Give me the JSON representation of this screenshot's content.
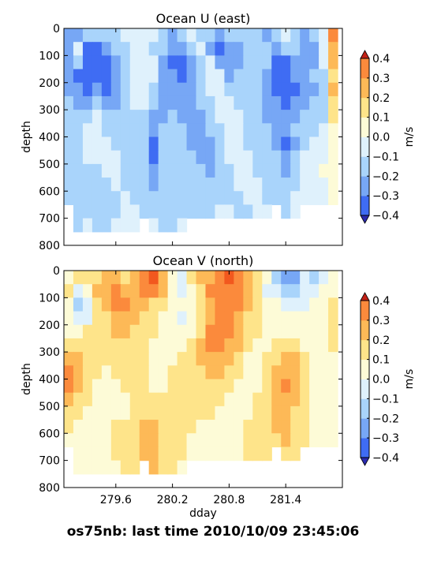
{
  "figure": {
    "caption": "os75nb: last time 2010/10/09 23:45:06",
    "colors": {
      "levels": [
        -0.4,
        -0.3,
        -0.2,
        -0.1,
        0.0,
        0.1,
        0.2,
        0.3,
        0.4
      ],
      "bins": [
        "#3a32e6",
        "#3f6cf3",
        "#77a7f5",
        "#a9d4fb",
        "#dff1fc",
        "#fdfbd7",
        "#fee48a",
        "#fdb957",
        "#fb8a3c",
        "#f2581e"
      ],
      "under": "#2b2bb0",
      "over": "#c22116",
      "axis": "#000000",
      "background": "#ffffff"
    }
  },
  "chart_data": [
    {
      "type": "heatmap",
      "title": "Ocean U (east)",
      "xlabel": "",
      "ylabel": "depth",
      "xlim": [
        279.05,
        282.0
      ],
      "ylim": [
        800,
        0
      ],
      "xticks": [
        279.6,
        280.2,
        280.8,
        281.4
      ],
      "xtick_labels": [
        "",
        "",
        "",
        ""
      ],
      "yticks": [
        0,
        100,
        200,
        300,
        400,
        500,
        600,
        700,
        800
      ],
      "ytick_labels": [
        "0",
        "100",
        "200",
        "300",
        "400",
        "500",
        "600",
        "700",
        "800"
      ],
      "colorbar": {
        "label": "m/s",
        "ticks": [
          0.4,
          0.3,
          0.2,
          0.1,
          0.0,
          -0.1,
          -0.2,
          -0.3,
          -0.4
        ],
        "tick_labels": [
          "0.4",
          "0.3",
          "0.2",
          "0.1",
          "0.0",
          "−0.1",
          "−0.2",
          "−0.3",
          "−0.4"
        ]
      },
      "x": [
        279.1,
        279.2,
        279.3,
        279.4,
        279.5,
        279.6,
        279.7,
        279.8,
        279.9,
        280.0,
        280.1,
        280.2,
        280.3,
        280.4,
        280.5,
        280.6,
        280.7,
        280.8,
        280.9,
        281.0,
        281.1,
        281.2,
        281.3,
        281.4,
        281.5,
        281.6,
        281.7,
        281.8,
        281.9
      ],
      "y": [
        25,
        75,
        125,
        175,
        225,
        275,
        325,
        375,
        425,
        475,
        525,
        575,
        625,
        675,
        725
      ],
      "z": [
        [
          -0.3,
          -0.25,
          -0.15,
          -0.2,
          -0.2,
          -0.15,
          -0.1,
          -0.1,
          -0.05,
          -0.1,
          -0.15,
          -0.25,
          -0.2,
          -0.1,
          -0.15,
          -0.2,
          -0.25,
          -0.15,
          -0.2,
          -0.2,
          -0.15,
          -0.25,
          -0.15,
          -0.1,
          -0.2,
          -0.25,
          -0.2,
          -0.05,
          0.3
        ],
        [
          -0.3,
          -0.05,
          -0.35,
          -0.35,
          -0.25,
          -0.2,
          -0.15,
          -0.1,
          -0.05,
          -0.15,
          -0.2,
          -0.3,
          -0.25,
          -0.2,
          -0.1,
          -0.25,
          -0.35,
          -0.3,
          -0.25,
          -0.2,
          -0.15,
          -0.2,
          -0.25,
          -0.15,
          -0.2,
          -0.25,
          -0.25,
          -0.05,
          0.25
        ],
        [
          -0.3,
          -0.2,
          -0.4,
          -0.4,
          -0.35,
          -0.25,
          -0.15,
          -0.1,
          -0.05,
          -0.1,
          -0.25,
          -0.35,
          -0.35,
          -0.25,
          -0.15,
          -0.1,
          -0.25,
          -0.3,
          -0.25,
          -0.2,
          -0.15,
          -0.2,
          -0.35,
          -0.35,
          -0.3,
          -0.25,
          -0.25,
          -0.1,
          0.2
        ],
        [
          -0.25,
          -0.35,
          -0.4,
          -0.4,
          -0.35,
          -0.25,
          -0.15,
          -0.1,
          -0.05,
          -0.1,
          -0.25,
          -0.3,
          -0.35,
          -0.25,
          -0.2,
          -0.05,
          -0.1,
          -0.25,
          -0.2,
          -0.2,
          -0.15,
          -0.25,
          -0.4,
          -0.4,
          -0.3,
          -0.25,
          -0.2,
          -0.15,
          0.15
        ],
        [
          -0.25,
          -0.3,
          -0.35,
          -0.3,
          -0.35,
          -0.3,
          -0.15,
          -0.05,
          -0.1,
          -0.15,
          -0.25,
          -0.3,
          -0.3,
          -0.25,
          -0.2,
          -0.1,
          -0.05,
          -0.15,
          -0.2,
          -0.2,
          -0.2,
          -0.25,
          -0.35,
          -0.4,
          -0.35,
          -0.25,
          -0.25,
          -0.2,
          0.2
        ],
        [
          -0.2,
          -0.25,
          -0.25,
          -0.2,
          -0.25,
          -0.3,
          -0.2,
          -0.1,
          -0.1,
          -0.2,
          -0.25,
          -0.25,
          -0.3,
          -0.3,
          -0.2,
          -0.15,
          -0.1,
          -0.1,
          -0.15,
          -0.15,
          -0.2,
          -0.25,
          -0.3,
          -0.35,
          -0.3,
          -0.25,
          -0.2,
          -0.2,
          0.15
        ],
        [
          -0.15,
          -0.2,
          -0.15,
          -0.1,
          -0.15,
          -0.2,
          -0.2,
          -0.15,
          -0.15,
          -0.25,
          -0.25,
          -0.2,
          -0.25,
          -0.3,
          -0.25,
          -0.2,
          -0.1,
          -0.05,
          -0.1,
          -0.15,
          -0.2,
          -0.25,
          -0.25,
          -0.3,
          -0.25,
          -0.2,
          -0.2,
          -0.15,
          0.1
        ],
        [
          -0.15,
          -0.15,
          -0.1,
          -0.1,
          -0.15,
          -0.15,
          -0.2,
          -0.15,
          -0.2,
          -0.3,
          -0.2,
          -0.2,
          -0.2,
          -0.3,
          -0.25,
          -0.2,
          -0.15,
          -0.05,
          -0.1,
          -0.15,
          -0.2,
          -0.2,
          -0.25,
          -0.3,
          -0.2,
          -0.15,
          -0.15,
          -0.1,
          0.05
        ],
        [
          -0.15,
          -0.15,
          -0.1,
          -0.1,
          -0.1,
          -0.15,
          -0.15,
          -0.2,
          -0.2,
          -0.35,
          -0.2,
          -0.15,
          -0.2,
          -0.25,
          -0.25,
          -0.25,
          -0.15,
          -0.1,
          -0.05,
          -0.15,
          -0.15,
          -0.15,
          -0.25,
          -0.35,
          -0.25,
          -0.15,
          -0.1,
          -0.1,
          0.0
        ],
        [
          -0.2,
          -0.15,
          -0.1,
          -0.1,
          -0.1,
          -0.1,
          -0.15,
          -0.2,
          -0.2,
          -0.35,
          -0.2,
          -0.15,
          -0.15,
          -0.2,
          -0.25,
          -0.25,
          -0.2,
          -0.1,
          -0.05,
          -0.1,
          -0.15,
          -0.15,
          -0.2,
          -0.3,
          -0.2,
          -0.1,
          -0.05,
          -0.05,
          0.0
        ],
        [
          -0.2,
          -0.15,
          -0.15,
          -0.15,
          -0.1,
          -0.1,
          -0.15,
          -0.15,
          -0.2,
          -0.3,
          -0.2,
          -0.15,
          -0.15,
          -0.15,
          -0.2,
          -0.25,
          -0.2,
          -0.15,
          -0.1,
          -0.1,
          -0.15,
          -0.15,
          -0.2,
          -0.25,
          -0.15,
          -0.1,
          -0.05,
          0.0,
          0.0
        ],
        [
          -0.15,
          -0.2,
          -0.15,
          -0.15,
          -0.15,
          -0.1,
          -0.15,
          -0.15,
          -0.15,
          -0.25,
          -0.15,
          -0.15,
          -0.15,
          -0.15,
          -0.15,
          -0.2,
          -0.2,
          -0.15,
          -0.1,
          -0.1,
          -0.1,
          -0.15,
          -0.15,
          -0.2,
          -0.15,
          -0.1,
          -0.05,
          -0.05,
          0.0
        ],
        [
          -0.15,
          -0.15,
          -0.15,
          -0.2,
          -0.15,
          -0.15,
          -0.1,
          -0.15,
          -0.15,
          -0.2,
          -0.15,
          -0.15,
          -0.15,
          -0.15,
          -0.15,
          -0.15,
          -0.15,
          -0.15,
          -0.15,
          -0.1,
          -0.1,
          -0.15,
          -0.15,
          -0.15,
          -0.1,
          -0.1,
          -0.05,
          -0.05,
          0.0
        ],
        [
          null,
          -0.15,
          -0.15,
          -0.2,
          -0.15,
          -0.15,
          -0.1,
          -0.1,
          -0.15,
          -0.2,
          -0.15,
          -0.15,
          -0.15,
          -0.15,
          -0.15,
          -0.15,
          -0.1,
          -0.1,
          -0.15,
          -0.15,
          -0.1,
          -0.1,
          null,
          -0.15,
          -0.1,
          null,
          null,
          null,
          null
        ],
        [
          null,
          -0.15,
          -0.1,
          -0.15,
          -0.15,
          -0.1,
          -0.1,
          -0.1,
          null,
          -0.1,
          -0.15,
          -0.15,
          -0.1,
          null,
          null,
          null,
          null,
          null,
          null,
          null,
          null,
          null,
          null,
          null,
          null,
          null,
          null,
          null,
          null
        ]
      ]
    },
    {
      "type": "heatmap",
      "title": "Ocean V (north)",
      "xlabel": "dday",
      "ylabel": "depth",
      "xlim": [
        279.05,
        282.0
      ],
      "ylim": [
        800,
        0
      ],
      "xticks": [
        279.6,
        280.2,
        280.8,
        281.4
      ],
      "xtick_labels": [
        "279.6",
        "280.2",
        "280.8",
        "281.4"
      ],
      "yticks": [
        0,
        100,
        200,
        300,
        400,
        500,
        600,
        700,
        800
      ],
      "ytick_labels": [
        "0",
        "100",
        "200",
        "300",
        "400",
        "500",
        "600",
        "700",
        "800"
      ],
      "colorbar": {
        "label": "m/s",
        "ticks": [
          0.4,
          0.3,
          0.2,
          0.1,
          0.0,
          -0.1,
          -0.2,
          -0.3,
          -0.4
        ],
        "tick_labels": [
          "0.4",
          "0.3",
          "0.2",
          "0.1",
          "0.0",
          "−0.1",
          "−0.2",
          "−0.3",
          "−0.4"
        ]
      },
      "x": [
        279.1,
        279.2,
        279.3,
        279.4,
        279.5,
        279.6,
        279.7,
        279.8,
        279.9,
        280.0,
        280.1,
        280.2,
        280.3,
        280.4,
        280.5,
        280.6,
        280.7,
        280.8,
        280.9,
        281.0,
        281.1,
        281.2,
        281.3,
        281.4,
        281.5,
        281.6,
        281.7,
        281.8,
        281.9
      ],
      "y": [
        25,
        75,
        125,
        175,
        225,
        275,
        325,
        375,
        425,
        475,
        525,
        575,
        625,
        675,
        725
      ],
      "z": [
        [
          0.05,
          0.1,
          0.1,
          0.15,
          0.2,
          0.2,
          0.15,
          0.25,
          0.3,
          0.45,
          0.25,
          0.05,
          -0.1,
          0.1,
          0.2,
          0.25,
          0.3,
          0.45,
          0.3,
          0.2,
          0.1,
          0.0,
          -0.15,
          -0.3,
          -0.25,
          -0.1,
          -0.15,
          -0.1,
          0.0
        ],
        [
          0.15,
          -0.05,
          0.05,
          0.2,
          0.25,
          0.3,
          0.25,
          0.25,
          0.3,
          0.35,
          0.2,
          0.0,
          -0.1,
          0.05,
          0.15,
          0.3,
          0.35,
          0.35,
          0.35,
          0.2,
          0.1,
          -0.05,
          -0.05,
          -0.2,
          -0.2,
          -0.1,
          -0.1,
          0.0,
          0.05
        ],
        [
          0.05,
          -0.2,
          -0.05,
          0.15,
          0.25,
          0.3,
          0.3,
          0.25,
          0.2,
          0.15,
          0.1,
          0.05,
          0.0,
          0.05,
          0.1,
          0.25,
          0.3,
          0.3,
          0.3,
          0.2,
          0.1,
          0.05,
          0.0,
          -0.05,
          -0.1,
          -0.05,
          0.0,
          0.05,
          0.1
        ],
        [
          0.0,
          -0.1,
          -0.05,
          0.1,
          0.15,
          0.25,
          0.25,
          0.2,
          0.15,
          0.1,
          0.05,
          0.0,
          -0.05,
          0.0,
          0.1,
          0.25,
          0.35,
          0.3,
          0.25,
          0.15,
          0.1,
          0.05,
          0.0,
          0.0,
          0.0,
          0.0,
          0.0,
          0.05,
          0.1
        ],
        [
          0.05,
          0.05,
          0.1,
          0.1,
          0.15,
          0.2,
          0.2,
          0.15,
          0.15,
          0.1,
          0.05,
          0.0,
          0.0,
          0.05,
          0.15,
          0.3,
          0.35,
          0.3,
          0.2,
          0.15,
          0.1,
          0.05,
          0.05,
          0.0,
          0.05,
          0.05,
          0.05,
          0.05,
          0.15
        ],
        [
          0.15,
          0.15,
          0.15,
          0.1,
          0.1,
          0.15,
          0.15,
          0.15,
          0.1,
          0.05,
          0.05,
          0.05,
          0.05,
          0.1,
          0.2,
          0.3,
          0.3,
          0.25,
          0.2,
          0.1,
          0.05,
          0.05,
          0.1,
          0.15,
          0.1,
          0.05,
          0.05,
          0.05,
          0.1
        ],
        [
          0.25,
          0.2,
          0.15,
          0.1,
          0.1,
          0.1,
          0.15,
          0.15,
          0.1,
          0.05,
          0.05,
          0.05,
          0.1,
          0.15,
          0.2,
          0.25,
          0.25,
          0.2,
          0.15,
          0.05,
          0.05,
          0.1,
          0.15,
          0.25,
          0.2,
          0.1,
          0.05,
          0.05,
          0.05
        ],
        [
          0.3,
          0.2,
          0.15,
          0.1,
          0.05,
          0.1,
          0.1,
          0.15,
          0.1,
          0.05,
          0.05,
          0.1,
          0.15,
          0.15,
          0.15,
          0.2,
          0.2,
          0.15,
          0.1,
          0.05,
          0.05,
          0.1,
          0.2,
          0.25,
          0.25,
          0.1,
          0.05,
          0.0,
          0.05
        ],
        [
          0.3,
          0.2,
          0.1,
          0.05,
          0.05,
          0.05,
          0.1,
          0.1,
          0.1,
          0.05,
          0.05,
          0.1,
          0.15,
          0.15,
          0.15,
          0.15,
          0.15,
          0.1,
          0.05,
          0.05,
          0.05,
          0.15,
          0.2,
          0.3,
          0.25,
          0.15,
          0.05,
          0.0,
          0.0
        ],
        [
          0.25,
          0.15,
          0.1,
          0.05,
          0.05,
          0.05,
          0.05,
          0.1,
          0.1,
          0.1,
          0.1,
          0.15,
          0.15,
          0.15,
          0.1,
          0.1,
          0.1,
          0.05,
          0.05,
          0.05,
          0.1,
          0.15,
          0.2,
          0.25,
          0.2,
          0.15,
          0.05,
          0.05,
          0.0
        ],
        [
          0.15,
          0.1,
          0.05,
          0.05,
          0.05,
          0.05,
          0.05,
          0.1,
          0.15,
          0.15,
          0.15,
          0.15,
          0.1,
          0.1,
          0.1,
          0.1,
          0.05,
          0.05,
          0.05,
          0.05,
          0.1,
          0.15,
          0.2,
          0.25,
          0.15,
          0.1,
          0.05,
          0.05,
          0.0
        ],
        [
          0.1,
          0.05,
          0.05,
          0.05,
          0.05,
          0.1,
          0.1,
          0.15,
          0.2,
          0.2,
          0.15,
          0.1,
          0.1,
          0.1,
          0.05,
          0.05,
          0.05,
          0.05,
          0.05,
          0.1,
          0.15,
          0.15,
          0.2,
          0.2,
          0.15,
          0.1,
          0.05,
          0.05,
          0.0
        ],
        [
          0.05,
          0.05,
          0.05,
          0.05,
          0.05,
          0.1,
          0.1,
          0.15,
          0.2,
          0.2,
          0.15,
          0.1,
          0.1,
          0.05,
          0.05,
          0.05,
          0.05,
          0.05,
          0.05,
          0.1,
          0.1,
          0.15,
          0.15,
          0.2,
          0.15,
          0.1,
          0.05,
          0.05,
          0.05
        ],
        [
          null,
          0.05,
          0.05,
          0.05,
          0.05,
          0.1,
          0.1,
          0.15,
          0.2,
          0.2,
          0.15,
          0.1,
          0.1,
          0.05,
          0.05,
          0.05,
          0.05,
          0.05,
          0.05,
          0.1,
          0.1,
          0.15,
          null,
          0.15,
          0.1,
          null,
          null,
          null,
          null
        ],
        [
          null,
          0.05,
          0.05,
          0.05,
          0.05,
          0.05,
          0.1,
          0.15,
          null,
          0.2,
          0.15,
          0.1,
          0.05,
          null,
          null,
          null,
          null,
          null,
          null,
          null,
          null,
          null,
          null,
          null,
          null,
          null,
          null,
          null,
          null
        ]
      ]
    }
  ]
}
